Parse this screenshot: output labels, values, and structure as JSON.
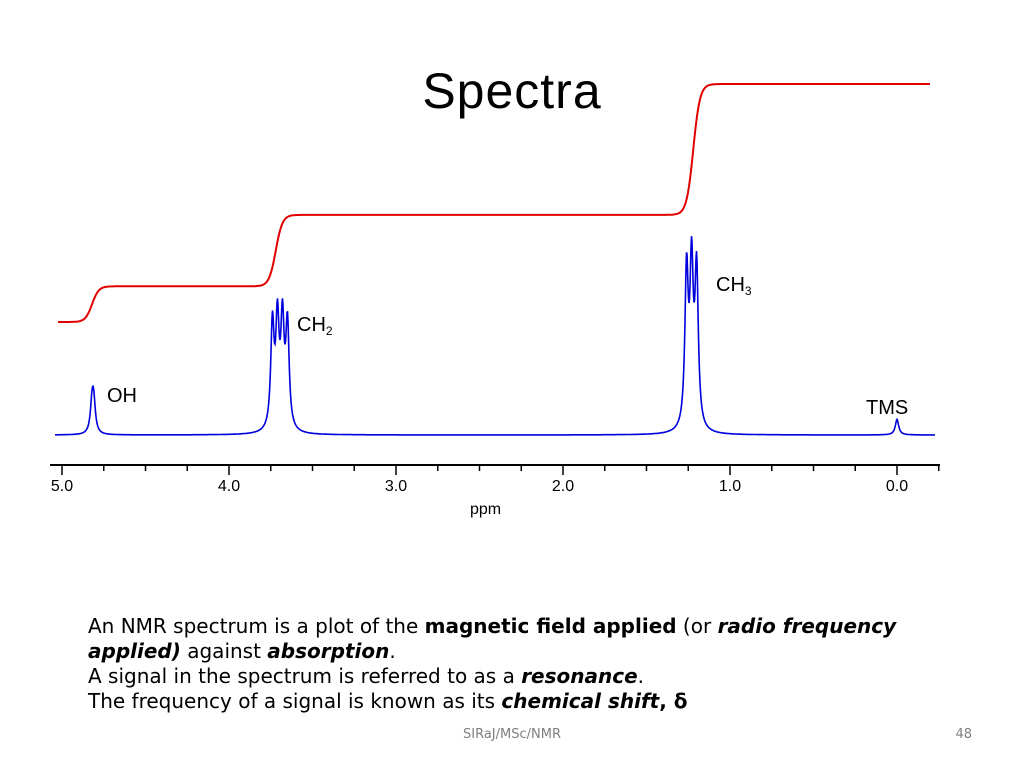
{
  "slide": {
    "title": "Spectra",
    "footer_center": "SIRaJ/MSc/NMR",
    "page_number": "48"
  },
  "text": {
    "line1_a": "An NMR spectrum is a plot of the ",
    "line1_b": "magnetic field applied",
    "line1_c": " (or ",
    "line1_d": "radio frequency",
    "line2_a": "applied)",
    "line2_b": " against ",
    "line2_c": "absorption",
    "line2_d": ".",
    "line3_a": "A signal in the spectrum is referred to as a ",
    "line3_b": "resonance",
    "line3_c": ".",
    "line4_a": "The frequency of a signal is known as its ",
    "line4_b": "chemical shift",
    "line4_c": ", δ"
  },
  "chart_data": {
    "type": "line",
    "xlabel": "ppm",
    "xlim": [
      5.1,
      -0.25
    ],
    "x_reversed": true,
    "ticks": [
      {
        "value": 5.0,
        "label": "5.0"
      },
      {
        "value": 4.0,
        "label": "4.0"
      },
      {
        "value": 3.0,
        "label": "3.0"
      },
      {
        "value": 2.0,
        "label": "2.0"
      },
      {
        "value": 1.0,
        "label": "1.0"
      },
      {
        "value": 0.0,
        "label": "0.0"
      }
    ],
    "peaks": [
      {
        "label": "OH",
        "shift": 4.82,
        "relative_height": 0.11,
        "multiplet": [
          4.82,
          4.81
        ]
      },
      {
        "label": "CH",
        "sub": "2",
        "shift": 3.7,
        "relative_height": 0.4,
        "multiplet": [
          3.74,
          3.71,
          3.68,
          3.65
        ]
      },
      {
        "label": "CH",
        "sub": "3",
        "shift": 1.22,
        "relative_height": 0.6,
        "multiplet": [
          1.26,
          1.23,
          1.2
        ]
      },
      {
        "label": "TMS",
        "shift": 0.0,
        "relative_height": 0.06,
        "multiplet": [
          0.0
        ]
      }
    ],
    "integral": {
      "color": "#e00000",
      "steps": [
        {
          "shift": 4.82,
          "rise": 0.15
        },
        {
          "shift": 3.72,
          "rise": 0.3
        },
        {
          "shift": 1.22,
          "rise": 0.55
        }
      ]
    },
    "spectrum_color": "#0000dd",
    "axis_color": "#000000"
  }
}
